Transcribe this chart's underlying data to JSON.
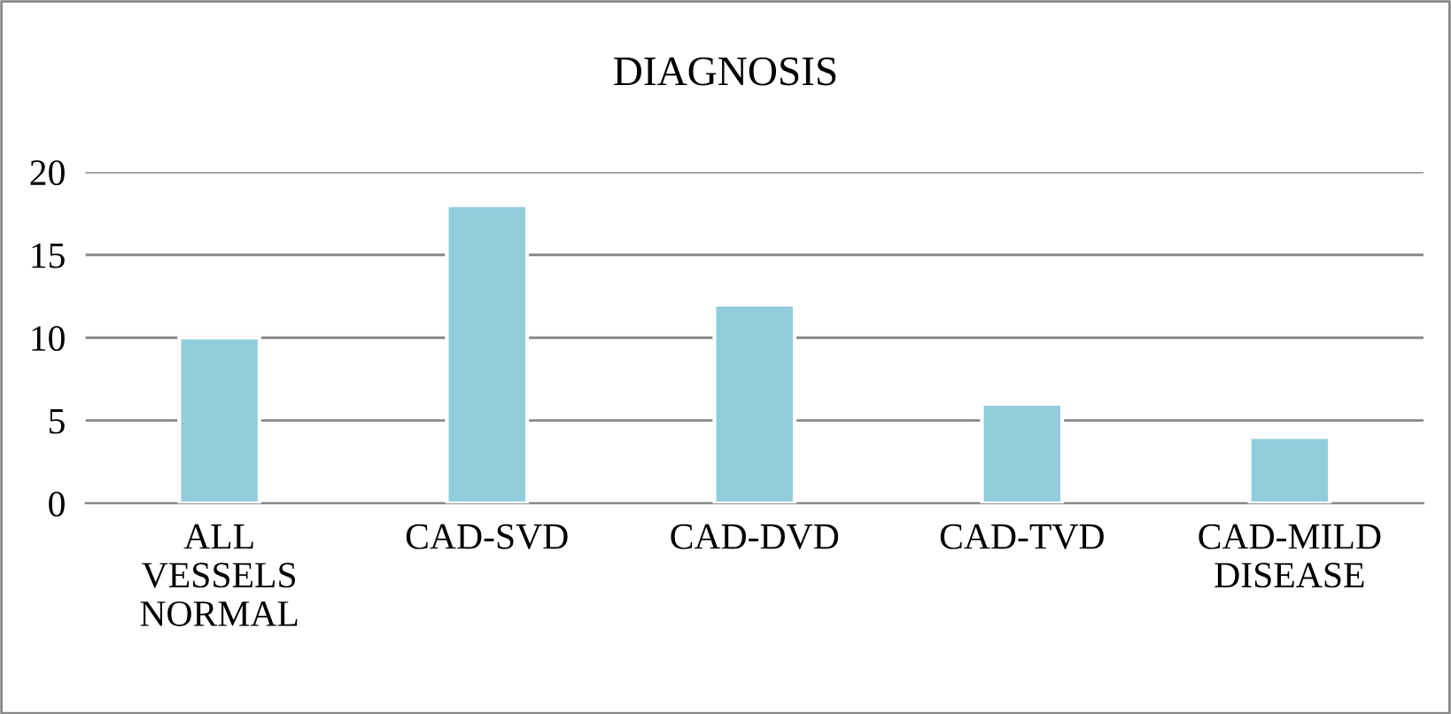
{
  "chart_data": {
    "type": "bar",
    "title": "DIAGNOSIS",
    "categories": [
      "ALL\nVESSELS\nNORMAL",
      "CAD-SVD",
      "CAD-DVD",
      "CAD-TVD",
      "CAD-MILD\nDISEASE"
    ],
    "values": [
      10,
      18,
      12,
      6,
      4
    ],
    "color": "#92cddc",
    "ylim": [
      0,
      20
    ],
    "yticks": [
      0,
      5,
      10,
      15,
      20
    ],
    "grid": "y",
    "legend": false
  }
}
